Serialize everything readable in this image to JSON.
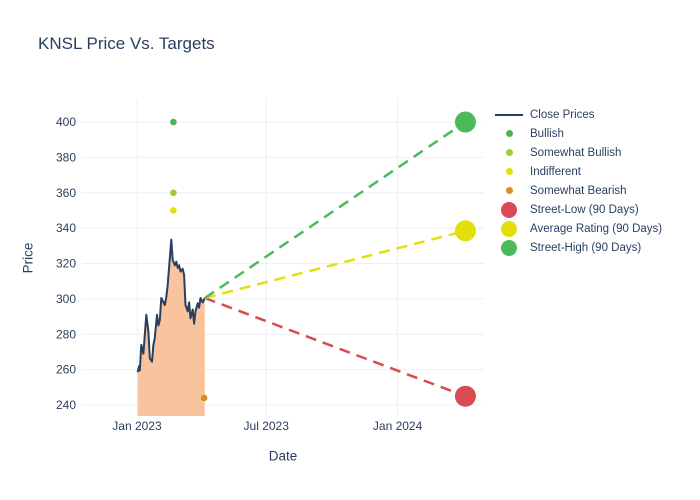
{
  "title": "KNSL Price Vs. Targets",
  "colors": {
    "text": "#2a3f5f",
    "background": "#ffffff",
    "grid": "#ebf0f8",
    "close_line": "#2a3f5f",
    "close_fill": "#f9c49d",
    "bullish": "#4db456",
    "somewhat_bullish": "#9ccd35",
    "indifferent": "#e2df0d",
    "somewhat_bearish": "#dc8d20",
    "street_low": "#d84b52",
    "average_rating": "#e2df0d",
    "street_high": "#4bba5b"
  },
  "legend": {
    "items": [
      {
        "label": "Close Prices",
        "marker": "line",
        "color": "#2a3f5f"
      },
      {
        "label": "Bullish",
        "marker": "dot-sm",
        "color": "#4db456"
      },
      {
        "label": "Somewhat Bullish",
        "marker": "dot-sm",
        "color": "#9ccd35"
      },
      {
        "label": "Indifferent",
        "marker": "dot-sm",
        "color": "#e2df0d"
      },
      {
        "label": "Somewhat Bearish",
        "marker": "dot-sm",
        "color": "#dc8d20"
      },
      {
        "label": "Street-Low (90 Days)",
        "marker": "dot-lg",
        "color": "#d84b52"
      },
      {
        "label": "Average Rating (90 Days)",
        "marker": "dot-lg",
        "color": "#e2df0d"
      },
      {
        "label": "Street-High (90 Days)",
        "marker": "dot-lg",
        "color": "#4bba5b"
      }
    ]
  },
  "chart_data": {
    "type": "line",
    "title": "KNSL Price Vs. Targets",
    "xlabel": "Date",
    "ylabel": "Price",
    "grid": true,
    "legend_position": "right",
    "x_ticks": [
      {
        "label": "Jan 2023",
        "date": "2023-01-01"
      },
      {
        "label": "Jul 2023",
        "date": "2023-07-01"
      },
      {
        "label": "Jan 2024",
        "date": "2024-01-01"
      }
    ],
    "y_ticks": [
      240,
      260,
      280,
      300,
      320,
      340,
      360,
      380,
      400
    ],
    "x_range": [
      "2022-10-16",
      "2024-05-01"
    ],
    "y_range": [
      233.8,
      413.0
    ],
    "series": [
      {
        "name": "Close Prices",
        "type": "line",
        "fill": "tozeroy",
        "color": "#2a3f5f",
        "fill_color": "#f9c49d",
        "points": [
          [
            "2023-01-02",
            258.5
          ],
          [
            "2023-01-04",
            262.0
          ],
          [
            "2023-01-05",
            259.5
          ],
          [
            "2023-01-07",
            274.0
          ],
          [
            "2023-01-10",
            269.0
          ],
          [
            "2023-01-14",
            291.0
          ],
          [
            "2023-01-17",
            281.5
          ],
          [
            "2023-01-19",
            266.5
          ],
          [
            "2023-01-22",
            264.5
          ],
          [
            "2023-01-24",
            274.0
          ],
          [
            "2023-01-26",
            278.0
          ],
          [
            "2023-01-29",
            291.0
          ],
          [
            "2023-01-31",
            285.0
          ],
          [
            "2023-02-02",
            288.0
          ],
          [
            "2023-02-04",
            300.5
          ],
          [
            "2023-02-09",
            296.5
          ],
          [
            "2023-02-11",
            301.0
          ],
          [
            "2023-02-13",
            308.0
          ],
          [
            "2023-02-18",
            333.5
          ],
          [
            "2023-02-20",
            322.0
          ],
          [
            "2023-02-23",
            319.0
          ],
          [
            "2023-02-25",
            321.0
          ],
          [
            "2023-02-27",
            317.5
          ],
          [
            "2023-03-01",
            319.0
          ],
          [
            "2023-03-03",
            315.5
          ],
          [
            "2023-03-06",
            317.0
          ],
          [
            "2023-03-08",
            313.5
          ],
          [
            "2023-03-10",
            296.5
          ],
          [
            "2023-03-13",
            293.0
          ],
          [
            "2023-03-15",
            298.0
          ],
          [
            "2023-03-17",
            289.0
          ],
          [
            "2023-03-20",
            294.0
          ],
          [
            "2023-03-22",
            286.0
          ],
          [
            "2023-03-24",
            293.0
          ],
          [
            "2023-03-27",
            297.5
          ],
          [
            "2023-03-29",
            295.0
          ],
          [
            "2023-03-31",
            300.5
          ],
          [
            "2023-04-03",
            298.0
          ],
          [
            "2023-04-06",
            300.5
          ]
        ]
      },
      {
        "name": "Analyst Ratings",
        "type": "scatter",
        "marker_radius": 3.3,
        "points": [
          {
            "label": "Bullish",
            "date": "2023-02-21",
            "price": 400,
            "color": "#4db456"
          },
          {
            "label": "Somewhat Bullish",
            "date": "2023-02-21",
            "price": 360,
            "color": "#9ccd35"
          },
          {
            "label": "Indifferent",
            "date": "2023-02-21",
            "price": 350,
            "color": "#e2df0d"
          },
          {
            "label": "Somewhat Bearish",
            "date": "2023-04-05",
            "price": 244,
            "color": "#dc8d20"
          }
        ]
      },
      {
        "name": "Price Targets (90 Days)",
        "type": "scatter",
        "marker_radius": 10.5,
        "projection_from_last_close": true,
        "dash_pattern": "11 7",
        "points": [
          {
            "label": "Street-Low (90 Days)",
            "date": "2024-04-05",
            "price": 245,
            "color": "#d84b52"
          },
          {
            "label": "Average Rating (90 Days)",
            "date": "2024-04-05",
            "price": 338.5,
            "color": "#e2df0d"
          },
          {
            "label": "Street-High (90 Days)",
            "date": "2024-04-05",
            "price": 400,
            "color": "#4bba5b"
          }
        ]
      }
    ]
  }
}
